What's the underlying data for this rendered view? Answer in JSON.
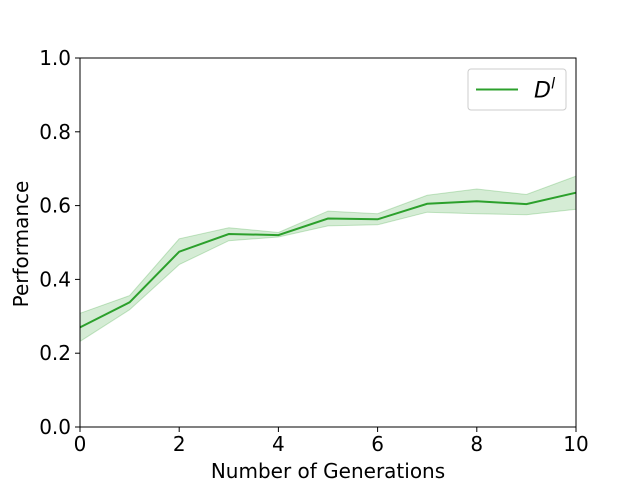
{
  "chart_data": {
    "type": "line",
    "title": "",
    "xlabel": "Number of Generations",
    "ylabel": "Performance",
    "xlim": [
      0,
      10
    ],
    "ylim": [
      0.0,
      1.0
    ],
    "xticks": [
      "0",
      "2",
      "4",
      "6",
      "8",
      "10"
    ],
    "yticks": [
      "0.0",
      "0.2",
      "0.4",
      "0.6",
      "0.8",
      "1.0"
    ],
    "grid": false,
    "legend_position": "top-right",
    "series": [
      {
        "name": "D^l",
        "legend_base": "D",
        "legend_sup": "l",
        "color": "#2ca02c",
        "band_color": "#2ca02c",
        "x": [
          0,
          1,
          2,
          3,
          4,
          5,
          6,
          7,
          8,
          9,
          10
        ],
        "y": [
          0.27,
          0.338,
          0.475,
          0.523,
          0.52,
          0.565,
          0.563,
          0.605,
          0.612,
          0.604,
          0.635
        ],
        "lower": [
          0.232,
          0.318,
          0.44,
          0.505,
          0.515,
          0.545,
          0.548,
          0.582,
          0.578,
          0.575,
          0.59
        ],
        "upper": [
          0.308,
          0.356,
          0.51,
          0.54,
          0.527,
          0.585,
          0.578,
          0.628,
          0.645,
          0.63,
          0.68
        ]
      }
    ]
  }
}
